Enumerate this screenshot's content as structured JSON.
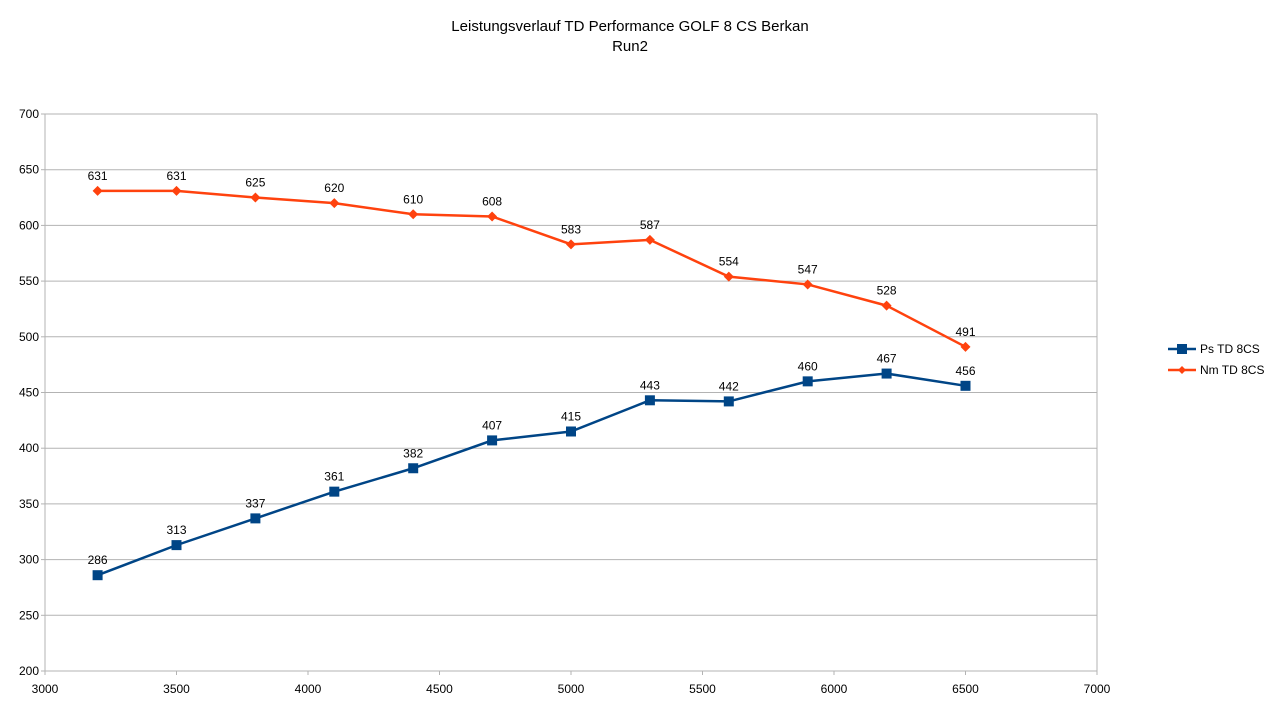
{
  "chart_data": {
    "type": "line",
    "title": "Leistungsverlauf TD Performance  GOLF 8 CS Berkan",
    "subtitle": "Run2",
    "xlabel": "",
    "ylabel": "",
    "xlim": [
      3000,
      7000
    ],
    "ylim": [
      200,
      700
    ],
    "x_ticks": [
      3000,
      3500,
      4000,
      4500,
      5000,
      5500,
      6000,
      6500,
      7000
    ],
    "y_ticks": [
      200,
      250,
      300,
      350,
      400,
      450,
      500,
      550,
      600,
      650,
      700
    ],
    "grid": true,
    "legend_position": "right",
    "x": [
      3200,
      3500,
      3800,
      4100,
      4400,
      4700,
      5000,
      5300,
      5600,
      5900,
      6200,
      6500
    ],
    "series": [
      {
        "name": "Ps TD 8CS",
        "color": "#004586",
        "marker": "square",
        "values": [
          286,
          313,
          337,
          361,
          382,
          407,
          415,
          443,
          442,
          460,
          467,
          456
        ]
      },
      {
        "name": "Nm TD 8CS",
        "color": "#ff420e",
        "marker": "diamond",
        "values": [
          631,
          631,
          625,
          620,
          610,
          608,
          583,
          587,
          554,
          547,
          528,
          491
        ]
      }
    ]
  }
}
